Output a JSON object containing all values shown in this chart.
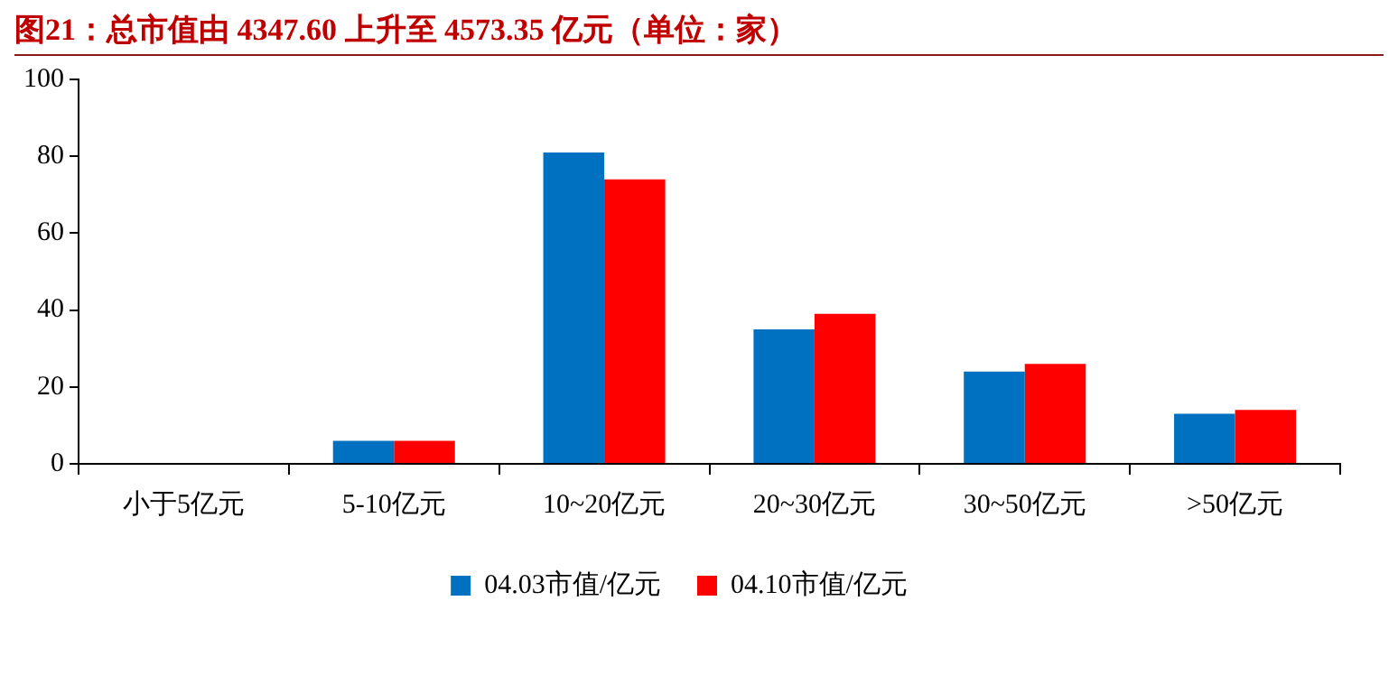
{
  "chart_data": {
    "type": "bar",
    "title": "图21：总市值由 4347.60 上升至 4573.35 亿元（单位：家）",
    "categories": [
      "小于5亿元",
      "5-10亿元",
      "10~20亿元",
      "20~30亿元",
      "30~50亿元",
      ">50亿元"
    ],
    "series": [
      {
        "name": "04.03市值/亿元",
        "color": "#0070c0",
        "values": [
          0,
          6,
          81,
          35,
          24,
          13
        ]
      },
      {
        "name": "04.10市值/亿元",
        "color": "#ff0000",
        "values": [
          0,
          6,
          74,
          39,
          26,
          14
        ]
      }
    ],
    "ylim": [
      0,
      100
    ],
    "yticks": [
      0,
      20,
      40,
      60,
      80,
      100
    ],
    "grid": false,
    "legend": "bottom"
  }
}
